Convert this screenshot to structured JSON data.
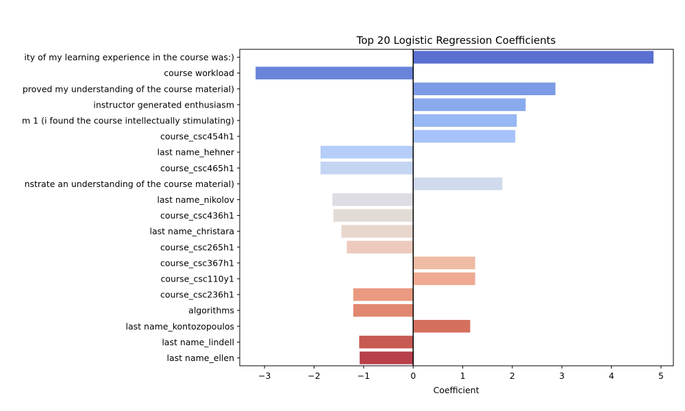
{
  "chart_data": {
    "type": "bar",
    "orientation": "horizontal",
    "title": "Top 20 Logistic Regression Coefficients",
    "xlabel": "Coefficient",
    "ylabel": "",
    "xlim": [
      -3.5,
      5.25
    ],
    "xticks": [
      -3,
      -2,
      -1,
      0,
      1,
      2,
      3,
      4,
      5
    ],
    "xtick_labels": [
      "−3",
      "−2",
      "−1",
      "0",
      "1",
      "2",
      "3",
      "4",
      "5"
    ],
    "grid": false,
    "legend": "none",
    "zero_line": true,
    "categories": [
      "ity of my learning experience in the course was:)",
      "course workload",
      "proved my understanding of the course material)",
      "instructor generated enthusiasm",
      "m 1 (i found the course intellectually stimulating)",
      "course_csc454h1",
      "last name_hehner",
      "course_csc465h1",
      "nstrate an understanding of the course material)",
      "last name_nikolov",
      "course_csc436h1",
      "last name_christara",
      "course_csc265h1",
      "course_csc367h1",
      "course_csc110y1",
      "course_csc236h1",
      "algorithms",
      "last name_kontozopoulos",
      "last name_lindell",
      "last name_ellen"
    ],
    "values": [
      4.85,
      -3.18,
      2.87,
      2.27,
      2.09,
      2.06,
      -1.87,
      -1.87,
      1.8,
      -1.63,
      -1.61,
      -1.45,
      -1.34,
      1.25,
      1.25,
      -1.21,
      -1.21,
      1.15,
      -1.09,
      -1.08
    ],
    "colors": [
      "#5a6fcf",
      "#6a84d9",
      "#7c9be6",
      "#8aaaee",
      "#97b8f3",
      "#a7c3f9",
      "#b5cdf8",
      "#c4d5f3",
      "#d0daed",
      "#dddde3",
      "#e2dcd6",
      "#e8d6cc",
      "#eecabe",
      "#efbba4",
      "#eeab92",
      "#ea9a81",
      "#e18770",
      "#d5705e",
      "#c75a53",
      "#b8404a"
    ]
  }
}
